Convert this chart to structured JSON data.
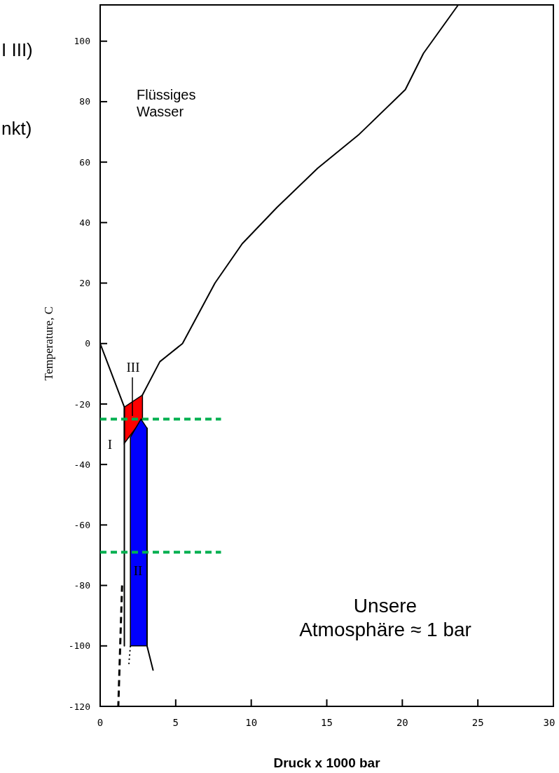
{
  "chart_data": {
    "type": "line",
    "xlabel": "Druck x 1000 bar",
    "ylabel": "Temperature, C",
    "xlim": [
      0,
      30
    ],
    "ylim": [
      -120,
      112
    ],
    "xticks": [
      0,
      5,
      10,
      15,
      20,
      25,
      30
    ],
    "yticks": [
      -120,
      -100,
      -80,
      -60,
      -40,
      -20,
      0,
      20,
      40,
      60,
      80,
      100
    ],
    "marker": "none",
    "series": [
      {
        "color": "#ff0000",
        "x": [
          1.6,
          2.8
        ],
        "values": [
          null,
          null
        ],
        "lower": [
          -33,
          -25
        ],
        "upper": [
          -21,
          -17
        ]
      },
      {
        "color": "#0000ff",
        "x": [
          2.0,
          2.7,
          3.1
        ],
        "values": [
          null,
          null,
          null
        ],
        "lower": [
          -100,
          -100,
          -100
        ],
        "upper": [
          -31,
          -25,
          -28
        ]
      },
      {
        "color": "#000000",
        "line_style": "solid",
        "x": [
          0,
          1.6,
          1.6
        ],
        "values": [
          0,
          -21,
          -100
        ]
      },
      {
        "color": "#000000",
        "line_style": "solid",
        "x": [
          2.8,
          3.95,
          5.45,
          7.6,
          9.4,
          11.7,
          14.4,
          17.1,
          20.2,
          21.4,
          23.7
        ],
        "values": [
          -17,
          -6,
          0,
          20,
          33,
          45,
          58,
          69,
          84,
          96,
          112
        ]
      },
      {
        "color": "#000000",
        "line_style": "dashed",
        "x": [
          1.45,
          1.2
        ],
        "values": [
          -80,
          -120
        ]
      },
      {
        "color": "#000000",
        "line_style": "solid",
        "x": [
          3.1,
          3.1,
          3.5
        ],
        "values": [
          -28,
          -100,
          -108
        ]
      },
      {
        "color": "#000000",
        "line_style": "dotted",
        "x": [
          2.0,
          1.9
        ],
        "values": [
          -100,
          -106
        ]
      },
      {
        "color": "#00b050",
        "line_style": "dashed",
        "x": [
          0,
          8
        ],
        "values": [
          -25,
          -25
        ]
      },
      {
        "color": "#00b050",
        "line_style": "dashed",
        "x": [
          0,
          8
        ],
        "values": [
          -69,
          -69
        ]
      }
    ],
    "annotations": [
      "III",
      "I",
      "II",
      "Flüssiges Wasser",
      "Unsere Atmosphäre ≈ 1 bar",
      "I III)",
      "nkt)"
    ]
  }
}
